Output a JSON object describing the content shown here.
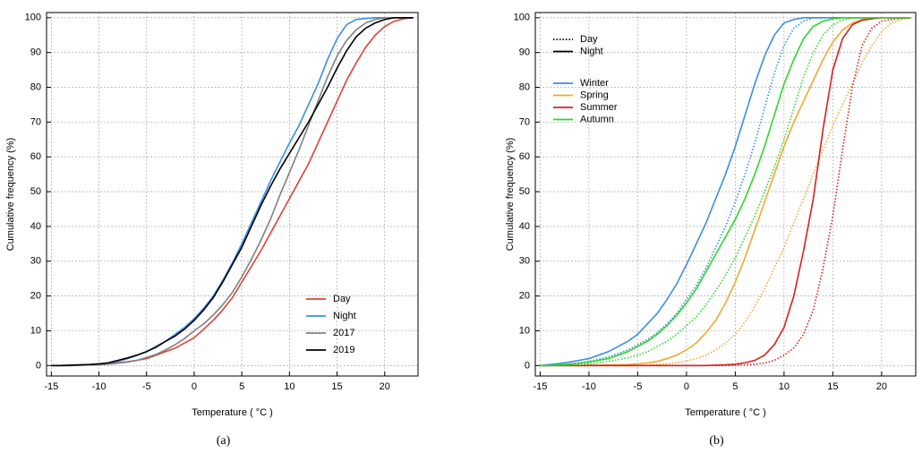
{
  "chart_data": [
    {
      "type": "line",
      "caption": "(a)",
      "xlabel": "Temperature ( °C )",
      "ylabel": "Cumulative frequency (%)",
      "x": [
        -15,
        -14,
        -13,
        -12,
        -11,
        -10,
        -9,
        -8,
        -7,
        -6,
        -5,
        -4,
        -3,
        -2,
        -1,
        0,
        1,
        2,
        3,
        4,
        5,
        6,
        7,
        8,
        9,
        10,
        11,
        12,
        13,
        14,
        15,
        16,
        17,
        18,
        19,
        20,
        21,
        22,
        23
      ],
      "xlim": [
        -15.5,
        23.5
      ],
      "ylim": [
        -3,
        101.5
      ],
      "xticks": [
        -15,
        -10,
        -5,
        0,
        5,
        10,
        15,
        20
      ],
      "yticks": [
        0,
        10,
        20,
        30,
        40,
        50,
        60,
        70,
        80,
        90,
        100
      ],
      "grid": true,
      "legend": "lower right",
      "series": [
        {
          "name": "Day",
          "color": "#e0403c",
          "values": [
            0,
            0,
            0,
            0.1,
            0.2,
            0.3,
            0.5,
            0.8,
            1.1,
            1.5,
            2,
            3,
            4,
            5,
            6.5,
            8,
            10.5,
            13,
            16,
            19.5,
            24,
            28.5,
            33,
            38,
            43,
            48,
            53,
            58,
            64,
            70,
            76,
            82,
            87,
            91.5,
            95,
            97.5,
            99,
            99.7,
            100
          ]
        },
        {
          "name": "Night",
          "color": "#3a8ee0",
          "values": [
            0,
            0,
            0.1,
            0.2,
            0.3,
            0.5,
            0.8,
            1.2,
            2,
            3,
            4,
            5.5,
            7,
            9,
            11,
            13.5,
            16.5,
            20,
            24.5,
            29.5,
            35,
            41,
            47,
            53,
            58.5,
            64,
            69,
            75,
            81,
            88,
            94,
            98,
            99.5,
            99.8,
            100,
            100,
            100,
            100,
            100
          ]
        },
        {
          "name": "2017",
          "color": "#808080",
          "values": [
            0,
            0,
            0,
            0.1,
            0.2,
            0.2,
            0.4,
            0.7,
            1,
            1.5,
            2.3,
            3.2,
            4.5,
            6,
            7.8,
            10,
            12,
            14.5,
            17.5,
            21,
            25.5,
            30.5,
            36,
            42,
            49,
            55.5,
            62,
            69,
            76,
            83,
            89,
            93.5,
            96.5,
            98.5,
            99.5,
            100,
            100,
            100,
            100
          ]
        },
        {
          "name": "2019",
          "color": "#000000",
          "values": [
            0,
            0,
            0.1,
            0.2,
            0.3,
            0.5,
            0.8,
            1.5,
            2.2,
            3,
            4,
            5.3,
            7,
            8.5,
            10.5,
            13,
            16,
            19.5,
            24,
            29,
            34,
            40,
            46,
            51.5,
            56.5,
            61,
            65.5,
            70,
            75,
            80,
            85.5,
            90.5,
            94.5,
            97,
            98.5,
            99.5,
            100,
            100,
            100
          ]
        }
      ]
    },
    {
      "type": "line",
      "caption": "(b)",
      "xlabel": "Temperature ( °C )",
      "ylabel": "Cumulative frequency (%)",
      "x": [
        -15,
        -14,
        -13,
        -12,
        -11,
        -10,
        -9,
        -8,
        -7,
        -6,
        -5,
        -4,
        -3,
        -2,
        -1,
        0,
        1,
        2,
        3,
        4,
        5,
        6,
        7,
        8,
        9,
        10,
        11,
        12,
        13,
        14,
        15,
        16,
        17,
        18,
        19,
        20,
        21,
        22,
        23
      ],
      "xlim": [
        -15.5,
        23.5
      ],
      "ylim": [
        -3,
        101.5
      ],
      "xticks": [
        -15,
        -10,
        -5,
        0,
        5,
        10,
        15,
        20
      ],
      "yticks": [
        0,
        10,
        20,
        30,
        40,
        50,
        60,
        70,
        80,
        90,
        100
      ],
      "grid": true,
      "legend": "upper left",
      "line_styles": [
        {
          "name": "Day",
          "dash": "dotted"
        },
        {
          "name": "Night",
          "dash": "solid"
        }
      ],
      "series": [
        {
          "name": "Winter",
          "color": "#3a8ee0",
          "values": [
            [
              0,
              0.1,
              0.3,
              0.5,
              0.8,
              1.2,
              1.8,
              2.5,
              3.5,
              4.5,
              6,
              7.5,
              9.5,
              12,
              15,
              19,
              23,
              28,
              34,
              40,
              47,
              55,
              64,
              74,
              84,
              92,
              97,
              99,
              100,
              100,
              100,
              100,
              100,
              100,
              100,
              100,
              100,
              100,
              100
            ],
            [
              0,
              0.3,
              0.6,
              1,
              1.5,
              2,
              3,
              4,
              5.5,
              7,
              9,
              12,
              15,
              19,
              23.5,
              29,
              35,
              41,
              48,
              55,
              63,
              72,
              81,
              89,
              95,
              98.5,
              99.5,
              100,
              100,
              100,
              100,
              100,
              100,
              100,
              100,
              100,
              100,
              100,
              100
            ]
          ]
        },
        {
          "name": "Spring",
          "color": "#f0a830",
          "values": [
            [
              0,
              0,
              0,
              0,
              0,
              0,
              0,
              0,
              0,
              0,
              0,
              0.2,
              0.3,
              0.5,
              0.8,
              1.3,
              2,
              3,
              4.5,
              6.5,
              9,
              12.5,
              17,
              22,
              28,
              34,
              41,
              48,
              55,
              62,
              69,
              75,
              81,
              87,
              92,
              96,
              98.5,
              99.5,
              100
            ],
            [
              0,
              0,
              0,
              0,
              0,
              0.1,
              0.1,
              0.2,
              0.2,
              0.3,
              0.5,
              0.8,
              1.2,
              2,
              3,
              4.5,
              6.5,
              9.5,
              13,
              18,
              24,
              31,
              39,
              47,
              55,
              63,
              70,
              76,
              82,
              88,
              93,
              96.5,
              98.5,
              99.5,
              100,
              100,
              100,
              100,
              100
            ]
          ]
        },
        {
          "name": "Summer",
          "color": "#d62020",
          "values": [
            [
              0,
              0,
              0,
              0,
              0,
              0,
              0,
              0,
              0,
              0,
              0,
              0,
              0,
              0,
              0,
              0,
              0,
              0,
              0,
              0,
              0.1,
              0.2,
              0.4,
              0.7,
              1.5,
              3,
              5,
              9,
              16,
              28,
              43,
              62,
              80,
              92,
              97,
              99,
              99.5,
              99.8,
              100
            ],
            [
              0,
              0,
              0,
              0,
              0,
              0,
              0,
              0,
              0,
              0,
              0,
              0,
              0,
              0,
              0,
              0,
              0,
              0,
              0.1,
              0.2,
              0.4,
              0.8,
              1.5,
              3,
              6,
              11,
              20,
              33,
              48,
              68,
              85,
              94,
              98,
              99.3,
              99.7,
              100,
              100,
              100,
              100
            ]
          ]
        },
        {
          "name": "Autumn",
          "color": "#2ed62e",
          "values": [
            [
              0,
              0,
              0,
              0.1,
              0.3,
              0.5,
              0.8,
              1.2,
              1.7,
              2.3,
              3,
              4,
              5.5,
              7,
              9,
              11.5,
              14,
              17.5,
              21.5,
              26,
              31,
              37,
              43,
              50,
              57,
              65,
              74,
              83,
              90,
              95,
              98,
              99.3,
              100,
              100,
              100,
              100,
              100,
              100,
              100
            ],
            [
              0,
              0,
              0.2,
              0.4,
              0.7,
              1,
              1.5,
              2,
              3,
              4,
              5.5,
              7,
              9,
              11.5,
              14.5,
              18,
              22,
              27,
              32,
              37,
              42,
              48,
              55,
              63,
              72,
              81,
              88,
              94,
              97.5,
              99,
              99.7,
              100,
              100,
              100,
              100,
              100,
              100,
              100,
              100
            ]
          ]
        }
      ]
    }
  ]
}
